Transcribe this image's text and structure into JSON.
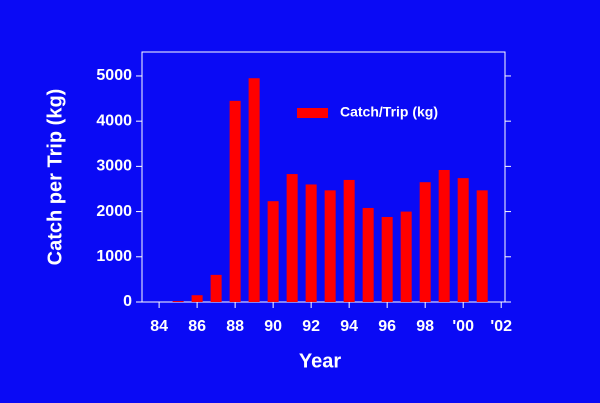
{
  "chart_data": {
    "type": "bar",
    "x_label": "Year",
    "y_label": "Catch per Trip (kg)",
    "x": [
      85,
      86,
      87,
      88,
      89,
      90,
      91,
      92,
      93,
      94,
      95,
      96,
      97,
      98,
      99,
      100,
      101
    ],
    "series": [
      {
        "name": "Catch/Trip (kg)",
        "color": "#ff0000",
        "values": [
          20,
          150,
          600,
          4450,
          4950,
          2230,
          2830,
          2600,
          2470,
          2700,
          2080,
          1880,
          2000,
          2650,
          2920,
          2740,
          2470
        ]
      }
    ],
    "xlim": [
      83.1,
      102.2
    ],
    "xticks": [
      84,
      86,
      88,
      90,
      92,
      94,
      96,
      98,
      {
        "value": 100,
        "label": "'00"
      },
      {
        "value": 102,
        "label": "'02"
      }
    ],
    "ylim": [
      0,
      5530
    ],
    "yticks": [
      0,
      1000,
      2000,
      3000,
      4000,
      5000
    ],
    "legend": "top-right"
  }
}
